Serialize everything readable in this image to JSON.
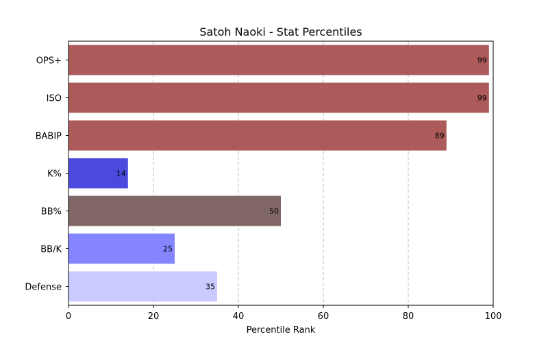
{
  "chart_data": {
    "type": "bar",
    "orientation": "horizontal",
    "title": "Satoh Naoki - Stat Percentiles",
    "xlabel": "Percentile Rank",
    "ylabel": "",
    "xlim": [
      0,
      100
    ],
    "xticks": [
      0,
      20,
      40,
      60,
      80,
      100
    ],
    "grid": "x-dashed",
    "categories": [
      "OPS+",
      "ISO",
      "BABIP",
      "K%",
      "BB%",
      "BB/K",
      "Defense"
    ],
    "values": [
      99,
      99,
      89,
      14,
      50,
      25,
      35
    ],
    "colors": [
      "#ad5a5a",
      "#ad5a5a",
      "#ad5a5a",
      "#4a4adf",
      "#806666",
      "#8585ff",
      "#cacaff"
    ]
  }
}
